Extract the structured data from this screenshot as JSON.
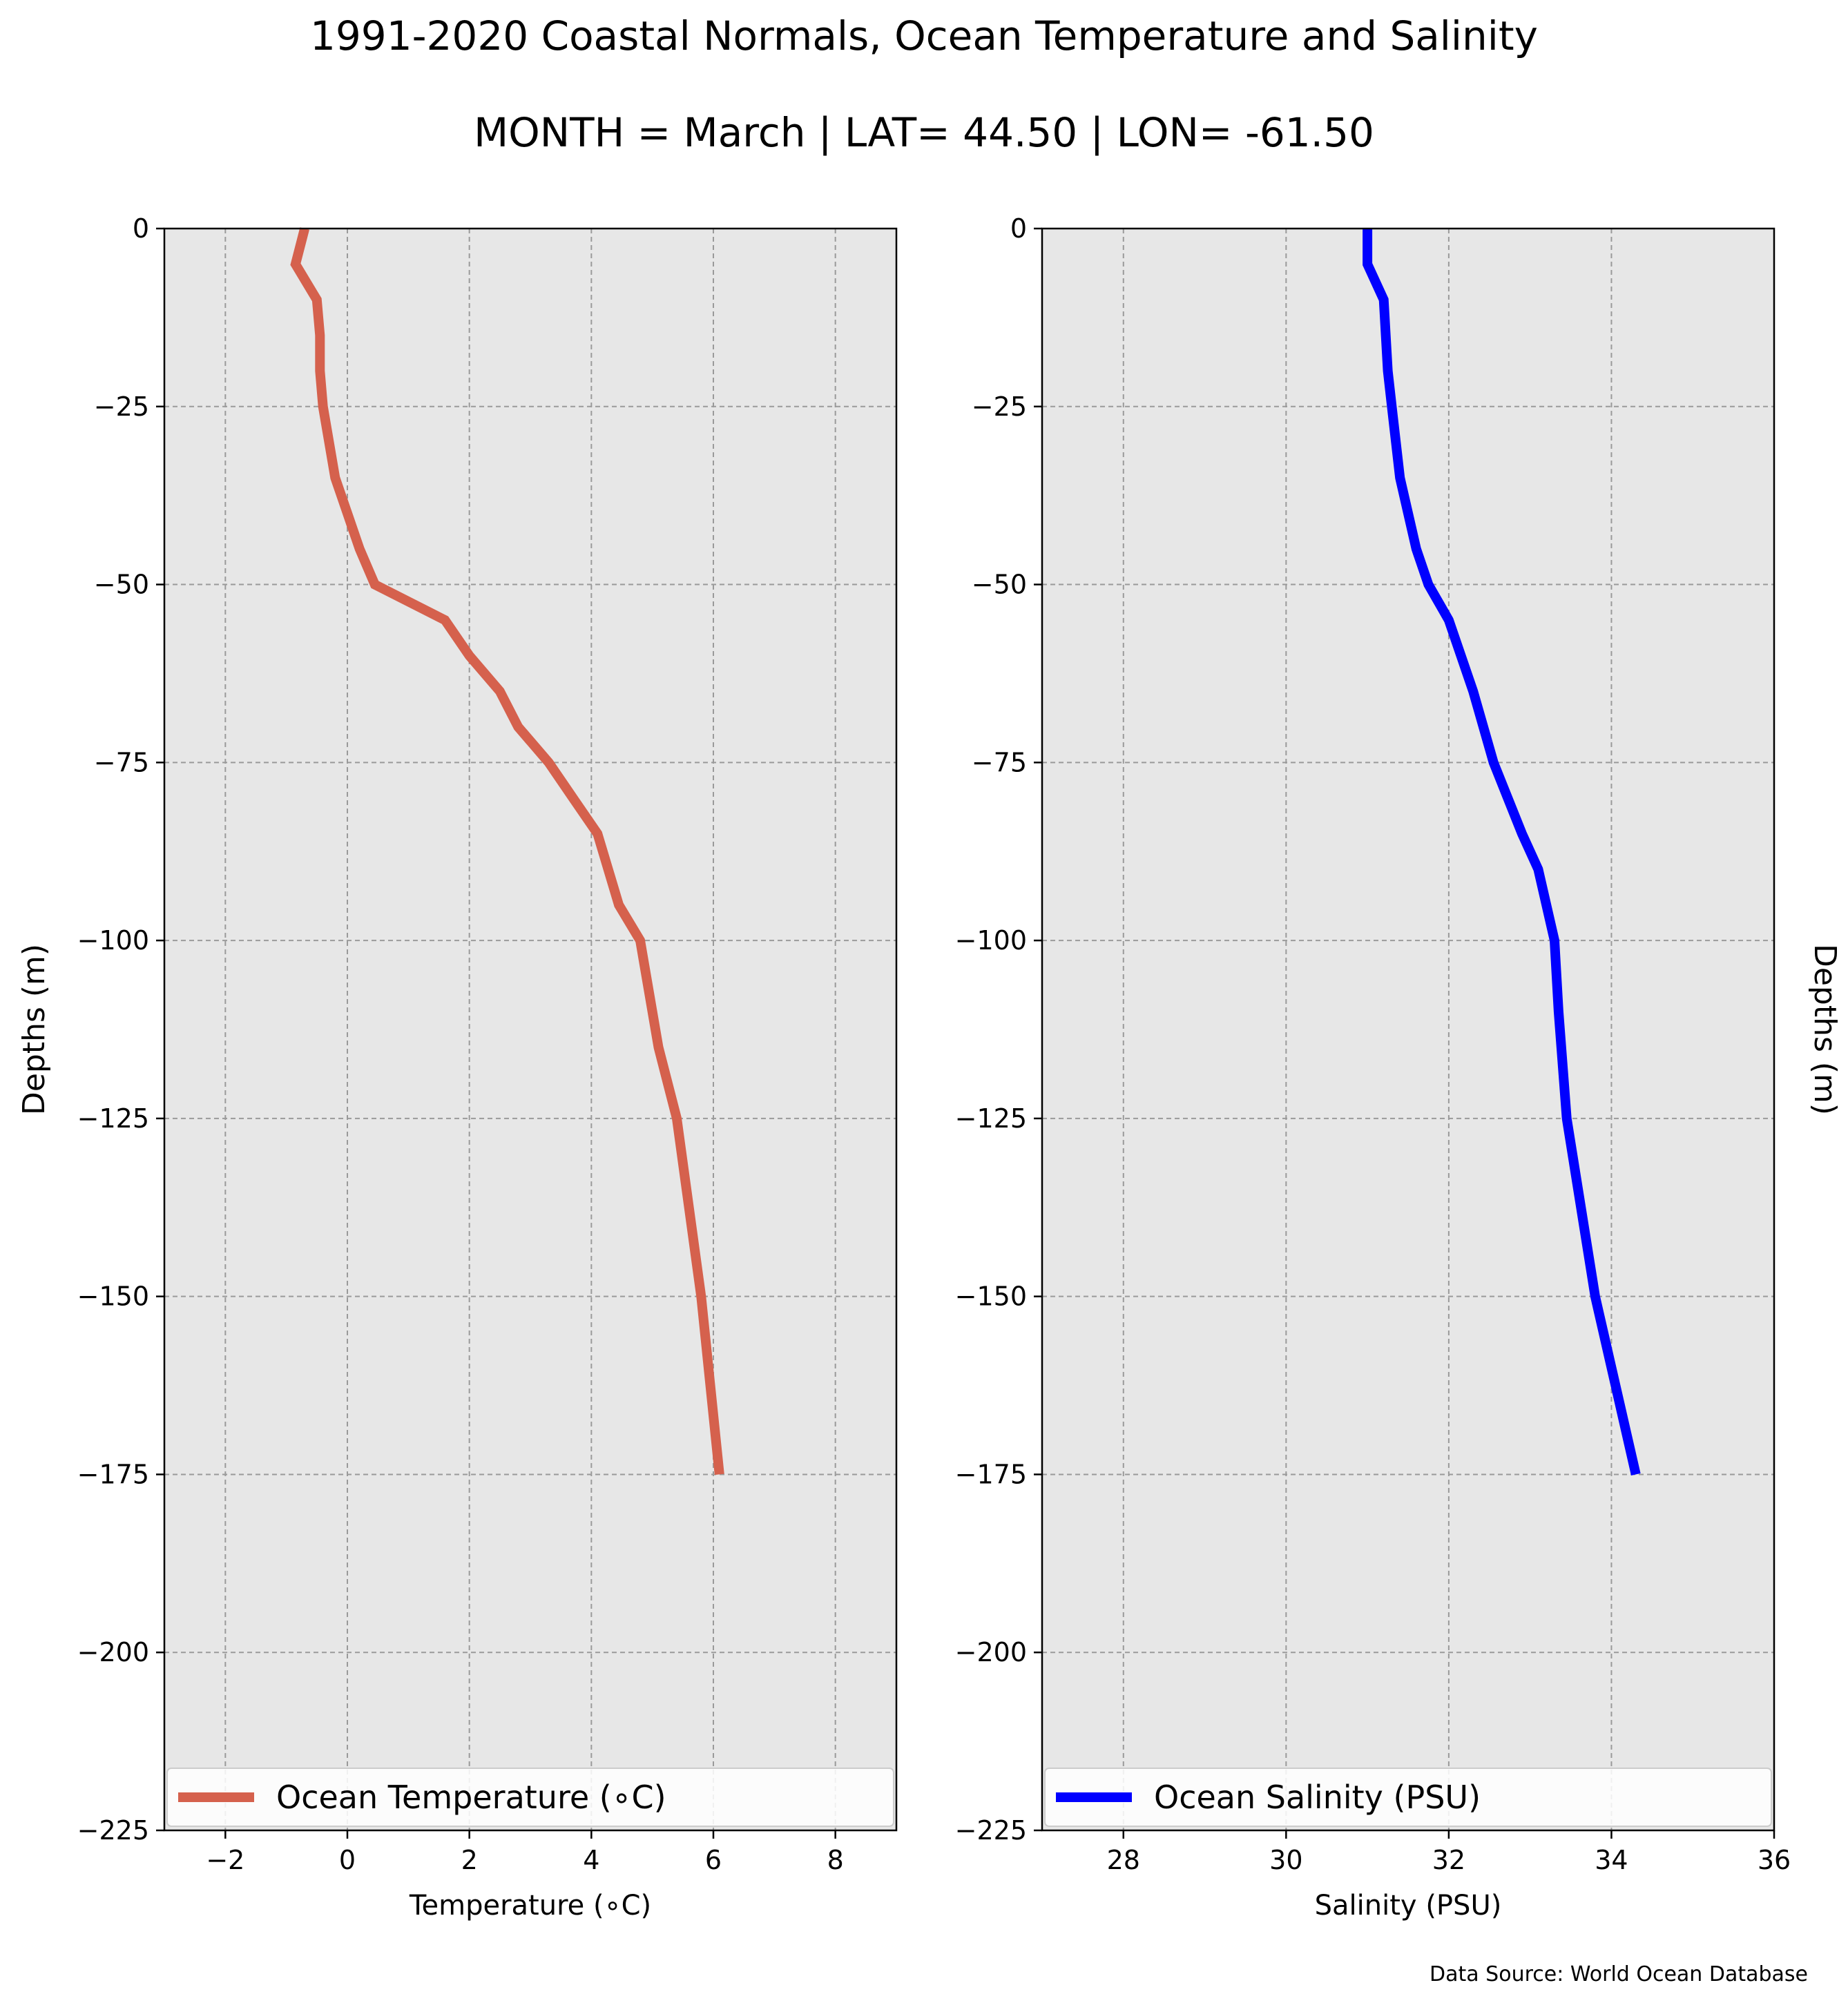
{
  "title": "1991-2020 Coastal Normals, Ocean Temperature and Salinity",
  "subtitle": "MONTH = March | LAT= 44.50 | LON= -61.50",
  "source": "Data Source: World Ocean Database",
  "chart_data": [
    {
      "type": "line",
      "xlabel": "Temperature (∘C)",
      "ylabel": "Depths (m)",
      "xlim": [
        -3,
        9
      ],
      "ylim": [
        -225,
        0
      ],
      "xticks": [
        -2,
        0,
        2,
        4,
        6,
        8
      ],
      "xtick_labels": [
        "−2",
        "0",
        "2",
        "4",
        "6",
        "8"
      ],
      "yticks": [
        0,
        -25,
        -50,
        -75,
        -100,
        -125,
        -150,
        -175,
        -200,
        -225
      ],
      "ytick_labels": [
        "0",
        "−25",
        "−50",
        "−75",
        "−100",
        "−125",
        "−150",
        "−175",
        "−200",
        "−225"
      ],
      "grid": true,
      "legend_position": "lower center",
      "series": [
        {
          "name": "Ocean Temperature (∘C)",
          "color": "#D5614D",
          "x": [
            -0.7,
            -0.85,
            -0.5,
            -0.45,
            -0.45,
            -0.4,
            -0.3,
            -0.2,
            0.0,
            0.2,
            0.45,
            1.6,
            2.0,
            2.5,
            2.8,
            3.3,
            3.7,
            4.1,
            4.45,
            4.8,
            5.1,
            5.4,
            5.8,
            6.1
          ],
          "y": [
            0,
            -5,
            -10,
            -15,
            -20,
            -25,
            -30,
            -35,
            -40,
            -45,
            -50,
            -55,
            -60,
            -65,
            -70,
            -75,
            -80,
            -85,
            -95,
            -100,
            -115,
            -125,
            -150,
            -175
          ]
        }
      ]
    },
    {
      "type": "line",
      "xlabel": "Salinity (PSU)",
      "ylabel": "Depths (m)",
      "xlim": [
        27,
        36
      ],
      "ylim": [
        -225,
        0
      ],
      "xticks": [
        28,
        30,
        32,
        34,
        36
      ],
      "xtick_labels": [
        "28",
        "30",
        "32",
        "34",
        "36"
      ],
      "yticks": [
        0,
        -25,
        -50,
        -75,
        -100,
        -125,
        -150,
        -175,
        -200,
        -225
      ],
      "ytick_labels": [
        "0",
        "−25",
        "−50",
        "−75",
        "−100",
        "−125",
        "−150",
        "−175",
        "−200",
        "−225"
      ],
      "grid": true,
      "legend_position": "lower center",
      "series": [
        {
          "name": "Ocean Salinity (PSU)",
          "color": "#0000FF",
          "x": [
            31.0,
            31.0,
            31.2,
            31.25,
            31.3,
            31.35,
            31.4,
            31.5,
            31.6,
            31.75,
            32.0,
            32.3,
            32.55,
            32.9,
            33.1,
            33.3,
            33.35,
            33.45,
            33.8,
            34.3
          ],
          "y": [
            0,
            -5,
            -10,
            -20,
            -25,
            -30,
            -35,
            -40,
            -45,
            -50,
            -55,
            -65,
            -75,
            -85,
            -90,
            -100,
            -110,
            -125,
            -150,
            -175
          ]
        }
      ]
    }
  ]
}
